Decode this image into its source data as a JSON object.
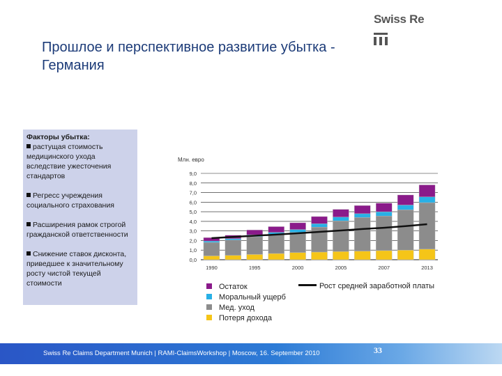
{
  "title": "Прошлое и перспективное развитие убытка - Германия",
  "logo": {
    "text": "Swiss Re",
    "mark": "swiss-re-logo-icon"
  },
  "factors": {
    "heading": "Факторы убытка:",
    "items": [
      "растущая стоимость медицинского ухода вследствие ужесточения стандартов",
      "Регресс учреждения социального страхования",
      "Расширения рамок строгой гражданской ответственности",
      "Снижение ставок дисконта, приведшее к значительному росту чистой текущей стоимости"
    ]
  },
  "chart_data": {
    "type": "bar",
    "stacked": true,
    "ylabel": "Млн. евро",
    "ylim": [
      0,
      9
    ],
    "yticks": [
      "0,0",
      "1,0",
      "2,0",
      "3,0",
      "4,0",
      "5,0",
      "6,0",
      "7,0",
      "8,0",
      "9,0"
    ],
    "categories": [
      "1990",
      "",
      "1995",
      "",
      "2000",
      "",
      "2005",
      "",
      "2007",
      "",
      "2013"
    ],
    "series": [
      {
        "name": "Потеря дохода",
        "color": "#f5c518",
        "values": [
          0.4,
          0.45,
          0.55,
          0.65,
          0.75,
          0.8,
          0.85,
          0.9,
          0.95,
          1.0,
          1.1
        ]
      },
      {
        "name": "Мед. уход",
        "color": "#8c8c8c",
        "values": [
          1.4,
          1.6,
          1.85,
          2.0,
          2.1,
          2.6,
          3.2,
          3.5,
          3.6,
          4.2,
          4.85
        ]
      },
      {
        "name": "Моральный ущерб",
        "color": "#28b0e6",
        "values": [
          0.15,
          0.15,
          0.2,
          0.2,
          0.3,
          0.35,
          0.4,
          0.4,
          0.45,
          0.5,
          0.6
        ]
      },
      {
        "name": "Остаток",
        "color": "#8a1a8a",
        "values": [
          0.35,
          0.35,
          0.5,
          0.6,
          0.7,
          0.75,
          0.8,
          0.85,
          0.9,
          1.05,
          1.25
        ]
      }
    ],
    "line": {
      "name": "Рост средней заработной платы",
      "color": "#111111",
      "values": [
        2.25,
        2.38,
        2.5,
        2.62,
        2.76,
        2.9,
        3.05,
        3.2,
        3.33,
        3.5,
        3.7
      ]
    },
    "grid": true,
    "legend": "bottom"
  },
  "footer": {
    "text": "Swiss Re Claims Department Munich | RAMI-ClaimsWorkshop | Moscow, 16. September 2010",
    "page": "33"
  }
}
